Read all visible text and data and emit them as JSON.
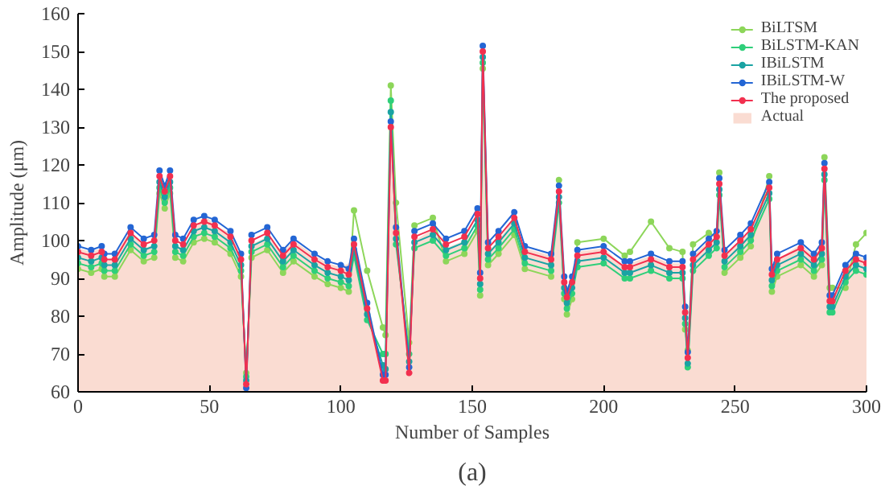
{
  "chart_data": {
    "type": "line",
    "xlabel": "Number of Samples",
    "ylabel": "Amplitude (μm)",
    "annotations": [
      "(a)"
    ],
    "x": [
      0,
      5,
      9,
      10,
      14,
      20,
      25,
      29,
      31,
      33,
      35,
      37,
      40,
      44,
      48,
      52,
      58,
      62,
      64,
      66,
      72,
      78,
      82,
      90,
      95,
      100,
      103,
      105,
      110,
      116,
      117,
      119,
      121,
      126,
      128,
      135,
      140,
      147,
      152,
      153,
      154,
      156,
      160,
      166,
      170,
      180,
      183,
      185,
      186,
      188,
      190,
      200,
      208,
      210,
      218,
      225,
      230,
      231,
      232,
      234,
      240,
      243,
      244,
      246,
      252,
      256,
      263,
      264,
      266,
      275,
      280,
      283,
      284,
      286,
      287,
      292,
      296,
      300
    ],
    "xlim": [
      0,
      300
    ],
    "xticks": [
      0,
      50,
      100,
      150,
      200,
      250,
      300
    ],
    "ylim": [
      60,
      160
    ],
    "yticks": [
      60,
      70,
      80,
      90,
      100,
      110,
      120,
      130,
      140,
      150,
      160
    ],
    "grid": false,
    "legend": "top right",
    "marker": "circle",
    "line_style": "solid",
    "series": [
      {
        "name": "BiLTSM",
        "color": "#8dd65a",
        "values": [
          92.5,
          91.5,
          92.5,
          90.5,
          90.5,
          97.5,
          94.5,
          95.5,
          112.5,
          108.5,
          112.5,
          95.5,
          94.5,
          99.5,
          100.5,
          99.5,
          96.5,
          90.5,
          65,
          95.5,
          97.5,
          91.5,
          94.5,
          90.5,
          88.5,
          87.5,
          86.5,
          108,
          92,
          77,
          75,
          141,
          110,
          73,
          104,
          106,
          94.5,
          96.5,
          102.5,
          85.5,
          145.5,
          93.5,
          96.5,
          101.5,
          92.5,
          90.5,
          116,
          84.5,
          80.5,
          84.5,
          99.5,
          100.5,
          96,
          97,
          105,
          98,
          97,
          76.5,
          71,
          99,
          102,
          101,
          118,
          91.5,
          95.5,
          98.5,
          117,
          86.5,
          90.5,
          93.5,
          90.5,
          93.5,
          122,
          87.5,
          87.5,
          87.5,
          99,
          102
        ]
      },
      {
        "name": "BiLSTM-KAN",
        "color": "#2fcf7a",
        "values": [
          94,
          93,
          94,
          92,
          92,
          99,
          96,
          97,
          114,
          110,
          114,
          97,
          96,
          101,
          102,
          101,
          98,
          92,
          64,
          97,
          99,
          93,
          96,
          92,
          90,
          89,
          88,
          96,
          79,
          70,
          70,
          137,
          99,
          70,
          98,
          100,
          96,
          98,
          104,
          87,
          147,
          95,
          98,
          103,
          94,
          92,
          110,
          86,
          82,
          86,
          93,
          94,
          90,
          90,
          92,
          90,
          90,
          78,
          66.5,
          92,
          96,
          98,
          112,
          93,
          97,
          100,
          111,
          88,
          92,
          95,
          92,
          95,
          116,
          81,
          81,
          89,
          92,
          91
        ]
      },
      {
        "name": "IBiLSTM",
        "color": "#1aa3a3",
        "values": [
          95.5,
          94.5,
          95.5,
          93.5,
          93.5,
          100.5,
          97.5,
          98.5,
          115.5,
          111.5,
          115.5,
          98.5,
          97.5,
          102.5,
          103.5,
          102.5,
          99.5,
          93.5,
          63,
          98.5,
          100.5,
          94.5,
          97.5,
          93.5,
          91.5,
          90.5,
          89.5,
          97.5,
          80.5,
          67,
          66,
          134,
          100.5,
          68,
          99.5,
          101.5,
          97.5,
          99.5,
          105.5,
          88.5,
          148.5,
          96.5,
          99.5,
          104.5,
          95.5,
          93.5,
          111.5,
          87.5,
          83.5,
          87.5,
          94.5,
          95.5,
          91.5,
          91.5,
          93.5,
          91.5,
          91.5,
          79.5,
          67.5,
          93.5,
          97.5,
          99.5,
          113.5,
          94.5,
          98.5,
          101.5,
          112.5,
          89.5,
          93.5,
          96.5,
          93.5,
          96.5,
          117.5,
          82.5,
          82.5,
          90.5,
          93.5,
          92.5
        ]
      },
      {
        "name": "IBiLSTM-W",
        "color": "#2466d4",
        "values": [
          98.5,
          97.5,
          98.5,
          96.5,
          96.5,
          103.5,
          100.5,
          101.5,
          118.5,
          114.5,
          118.5,
          101.5,
          100.5,
          105.5,
          106.5,
          105.5,
          102.5,
          96.5,
          61,
          101.5,
          103.5,
          97.5,
          100.5,
          96.5,
          94.5,
          93.5,
          92.5,
          100.5,
          83.5,
          64.5,
          64.5,
          131.5,
          103.5,
          66.5,
          102.5,
          104.5,
          100.5,
          102.5,
          108.5,
          91.5,
          151.5,
          99.5,
          102.5,
          107.5,
          98.5,
          96.5,
          114.5,
          90.5,
          86.5,
          90.5,
          97.5,
          98.5,
          94.5,
          94.5,
          96.5,
          94.5,
          94.5,
          82.5,
          70.5,
          96.5,
          100.5,
          102.5,
          116.5,
          97.5,
          101.5,
          104.5,
          115.5,
          92.5,
          96.5,
          99.5,
          96.5,
          99.5,
          120.5,
          85.5,
          85.5,
          93.5,
          96.5,
          95.5
        ]
      },
      {
        "name": "The proposed",
        "color": "#f2304f",
        "values": [
          97,
          96,
          97,
          95,
          95,
          102,
          99,
          100,
          117,
          113,
          117,
          100,
          99,
          104,
          105,
          104,
          101,
          95,
          62,
          100,
          102,
          96,
          99,
          95,
          93,
          92,
          91,
          99,
          82,
          63,
          63,
          130,
          102,
          65,
          101,
          103,
          99,
          101,
          107,
          90,
          150,
          98,
          101,
          106,
          97,
          95,
          113,
          89,
          85,
          89,
          96,
          97,
          93,
          93,
          95,
          93,
          93,
          81,
          69,
          95,
          99,
          101,
          115,
          96,
          100,
          103,
          114,
          91,
          95,
          98,
          95,
          98,
          119,
          84,
          84,
          92,
          95,
          94
        ]
      },
      {
        "name": "Actual",
        "type": "area",
        "marker": "none",
        "color": "#fadcd2",
        "values": [
          98,
          97,
          98,
          94,
          96,
          103,
          98,
          99,
          116,
          112,
          116,
          99,
          98,
          102,
          107,
          104,
          102,
          96,
          61,
          99,
          101,
          97,
          100,
          96,
          94,
          93,
          94,
          100,
          85,
          65,
          64,
          131,
          103,
          66,
          100,
          103,
          98,
          100,
          103,
          89,
          151,
          97,
          100,
          106,
          98,
          96,
          114,
          88,
          86,
          90,
          97,
          98,
          93,
          94,
          96,
          94,
          94,
          80,
          69,
          96,
          100,
          101,
          115,
          96,
          100,
          102,
          115,
          91,
          95,
          99,
          96,
          99,
          120,
          85,
          85,
          93,
          96,
          95
        ]
      }
    ]
  }
}
